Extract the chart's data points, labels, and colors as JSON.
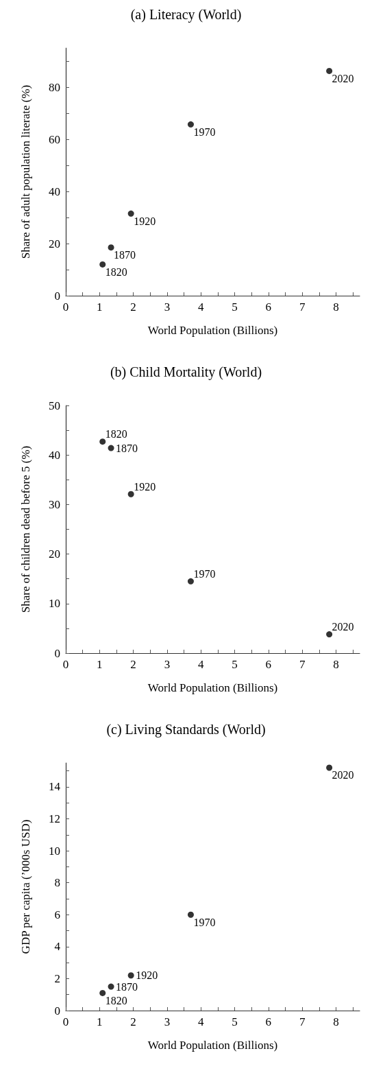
{
  "chart_data": [
    {
      "type": "scatter",
      "title": "(a) Literacy (World)",
      "xlabel": "World Population (Billions)",
      "ylabel": "Share of adult population literate (%)",
      "x": [
        1.09,
        1.34,
        1.93,
        3.7,
        7.8
      ],
      "series": [
        {
          "color": "#000000",
          "values": [
            12.0,
            18.5,
            31.5,
            65.7,
            86.2
          ]
        }
      ],
      "marker": "circle",
      "grid": false,
      "xlim": [
        0,
        8.7
      ],
      "xticks": [
        0,
        {
          "value": 0.5,
          "label": null
        },
        1,
        {
          "value": 1.5,
          "label": null
        },
        2,
        {
          "value": 2.5,
          "label": null
        },
        3,
        {
          "value": 3.5,
          "label": null
        },
        4,
        {
          "value": 4.5,
          "label": null
        },
        5,
        {
          "value": 5.5,
          "label": null
        },
        6,
        {
          "value": 6.5,
          "label": null
        },
        7,
        {
          "value": 7.5,
          "label": null
        },
        8,
        {
          "value": 8.5,
          "label": null
        }
      ],
      "ylim": [
        0,
        95
      ],
      "yticks": [
        0,
        {
          "value": 10,
          "label": null
        },
        20,
        {
          "value": 30,
          "label": null
        },
        40,
        {
          "value": 50,
          "label": null
        },
        60,
        {
          "value": 70,
          "label": null
        },
        80,
        {
          "value": 90,
          "label": null
        }
      ],
      "annotations": [
        {
          "text": "1820",
          "x": 1.09,
          "y": 12.0
        },
        {
          "text": "1870",
          "x": 1.34,
          "y": 18.5
        },
        {
          "text": "1920",
          "x": 1.93,
          "y": 31.5
        },
        {
          "text": "1970",
          "x": 3.7,
          "y": 65.7
        },
        {
          "text": "2020",
          "x": 7.8,
          "y": 86.2
        }
      ]
    },
    {
      "type": "scatter",
      "title": "(b) Child Mortality (World)",
      "xlabel": "World Population (Billions)",
      "ylabel": "Share of children dead before 5 (%)",
      "x": [
        1.09,
        1.34,
        1.93,
        3.7,
        7.8
      ],
      "series": [
        {
          "color": "#000000",
          "values": [
            42.7,
            41.4,
            32.1,
            14.5,
            3.8
          ]
        }
      ],
      "marker": "circle",
      "grid": false,
      "xlim": [
        0,
        8.7
      ],
      "xticks": [
        0,
        {
          "value": 0.5,
          "label": null
        },
        1,
        {
          "value": 1.5,
          "label": null
        },
        2,
        {
          "value": 2.5,
          "label": null
        },
        3,
        {
          "value": 3.5,
          "label": null
        },
        4,
        {
          "value": 4.5,
          "label": null
        },
        5,
        {
          "value": 5.5,
          "label": null
        },
        6,
        {
          "value": 6.5,
          "label": null
        },
        7,
        {
          "value": 7.5,
          "label": null
        },
        8,
        {
          "value": 8.5,
          "label": null
        }
      ],
      "ylim": [
        0,
        50
      ],
      "yticks": [
        0,
        {
          "value": 5,
          "label": null
        },
        10,
        {
          "value": 15,
          "label": null
        },
        20,
        {
          "value": 25,
          "label": null
        },
        30,
        {
          "value": 35,
          "label": null
        },
        40,
        {
          "value": 45,
          "label": null
        },
        50
      ],
      "annotations": [
        {
          "text": "1820",
          "x": 1.09,
          "y": 42.7
        },
        {
          "text": "1870",
          "x": 1.34,
          "y": 41.4
        },
        {
          "text": "1920",
          "x": 1.93,
          "y": 32.1
        },
        {
          "text": "1970",
          "x": 3.7,
          "y": 14.5
        },
        {
          "text": "2020",
          "x": 7.8,
          "y": 3.8
        }
      ]
    },
    {
      "type": "scatter",
      "title": "(c) Living Standards (World)",
      "xlabel": "World Population (Billions)",
      "ylabel": "GDP per capita (’000s USD)",
      "x": [
        1.09,
        1.34,
        1.93,
        3.7,
        7.8
      ],
      "series": [
        {
          "color": "#000000",
          "values": [
            1.1,
            1.5,
            2.2,
            6.0,
            15.2
          ]
        }
      ],
      "marker": "circle",
      "grid": false,
      "xlim": [
        0,
        8.7
      ],
      "xticks": [
        0,
        {
          "value": 0.5,
          "label": null
        },
        1,
        {
          "value": 1.5,
          "label": null
        },
        2,
        {
          "value": 2.5,
          "label": null
        },
        3,
        {
          "value": 3.5,
          "label": null
        },
        4,
        {
          "value": 4.5,
          "label": null
        },
        5,
        {
          "value": 5.5,
          "label": null
        },
        6,
        {
          "value": 6.5,
          "label": null
        },
        7,
        {
          "value": 7.5,
          "label": null
        },
        8,
        {
          "value": 8.5,
          "label": null
        }
      ],
      "ylim": [
        0,
        15.5
      ],
      "yticks": [
        0,
        {
          "value": 1,
          "label": null
        },
        2,
        {
          "value": 3,
          "label": null
        },
        4,
        {
          "value": 5,
          "label": null
        },
        6,
        {
          "value": 7,
          "label": null
        },
        8,
        {
          "value": 9,
          "label": null
        },
        10,
        {
          "value": 11,
          "label": null
        },
        12,
        {
          "value": 13,
          "label": null
        },
        14,
        {
          "value": 15,
          "label": null
        }
      ],
      "annotations": [
        {
          "text": "1820",
          "x": 1.09,
          "y": 1.1
        },
        {
          "text": "1870",
          "x": 1.34,
          "y": 1.5
        },
        {
          "text": "1920",
          "x": 1.93,
          "y": 2.2
        },
        {
          "text": "1970",
          "x": 3.7,
          "y": 6.0
        },
        {
          "text": "2020",
          "x": 7.8,
          "y": 15.2
        }
      ]
    }
  ]
}
